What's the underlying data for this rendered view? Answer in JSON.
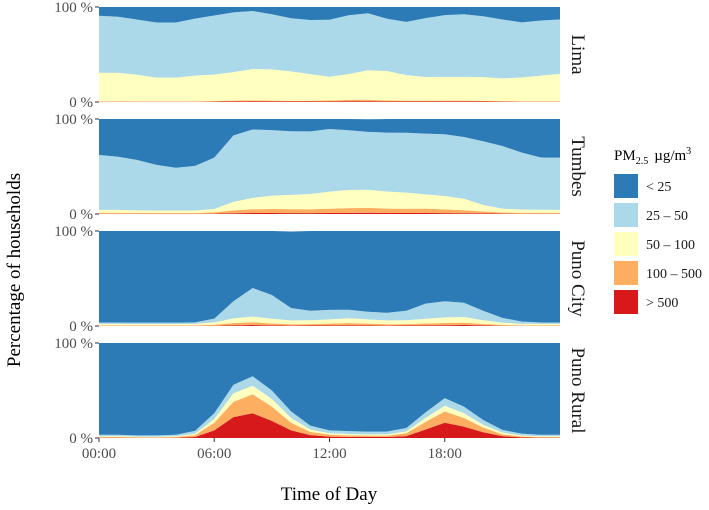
{
  "chart_data": {
    "type": "area",
    "stacked": true,
    "xlabel": "Time of Day",
    "ylabel": "Percentage of households",
    "x_ticks": [
      "00:00",
      "06:00",
      "12:00",
      "18:00"
    ],
    "x_tick_hours": [
      0,
      6,
      12,
      18
    ],
    "x_range_hours": [
      0,
      24
    ],
    "y_ticks": [
      "0 %",
      "100 %"
    ],
    "ylim": [
      0,
      100
    ],
    "legend": {
      "title_main": "PM",
      "title_sub": "2.5",
      "title_unit": "µg/m",
      "title_sup": "3",
      "placement": "right",
      "entries": [
        {
          "label": "< 25",
          "color": "#2c7bb6"
        },
        {
          "label": "25 – 50",
          "color": "#abd9e9"
        },
        {
          "label": "50 – 100",
          "color": "#ffffbf"
        },
        {
          "label": "100 – 500",
          "color": "#fdae61"
        },
        {
          "label": "> 500",
          "color": "#d7191c"
        }
      ]
    },
    "x_hours": [
      0,
      1,
      2,
      3,
      4,
      5,
      6,
      7,
      8,
      9,
      10,
      11,
      12,
      13,
      14,
      15,
      16,
      17,
      18,
      19,
      20,
      21,
      22,
      23,
      24
    ],
    "panels": [
      {
        "name": "Lima",
        "series": [
          {
            "name": "> 500",
            "values": [
              0.3,
              0.3,
              0.3,
              0.3,
              0.3,
              0.3,
              0.4,
              0.6,
              0.8,
              0.6,
              0.5,
              0.5,
              0.6,
              0.8,
              0.8,
              0.6,
              0.5,
              0.5,
              0.6,
              0.6,
              0.5,
              0.4,
              0.3,
              0.3,
              0.3
            ]
          },
          {
            "name": "100 – 500",
            "values": [
              0.5,
              0.5,
              0.4,
              0.4,
              0.4,
              0.4,
              0.6,
              0.8,
              1,
              0.8,
              0.7,
              0.8,
              1,
              1.5,
              1.6,
              1,
              0.8,
              0.8,
              0.9,
              0.8,
              0.7,
              0.5,
              0.5,
              0.5,
              0.5
            ]
          },
          {
            "name": "50 – 100",
            "values": [
              30,
              30,
              28,
              25,
              25,
              27,
              28,
              30,
              33,
              33,
              31,
              28,
              25,
              27,
              31,
              31,
              27,
              25,
              25,
              25,
              25,
              24,
              25,
              27,
              29
            ]
          },
          {
            "name": "25 – 50",
            "values": [
              60,
              59,
              58,
              58,
              58,
              60,
              62,
              63,
              61,
              58,
              56,
              57,
              60,
              62,
              60,
              55,
              56,
              62,
              65,
              66,
              64,
              62,
              58,
              58,
              57
            ]
          },
          {
            "name": "< 25",
            "values": [
              9.2,
              10.2,
              13.3,
              16.3,
              16.3,
              12.3,
              9,
              5.6,
              4.2,
              7.6,
              11.8,
              13.7,
              13.4,
              8.7,
              6.6,
              12.4,
              15.7,
              11.7,
              8.5,
              7.6,
              9.8,
              13.1,
              16.2,
              14.2,
              13.2
            ]
          }
        ]
      },
      {
        "name": "Tumbes",
        "series": [
          {
            "name": "> 500",
            "values": [
              0.3,
              0.3,
              0.3,
              0.3,
              0.3,
              0.3,
              0.4,
              0.8,
              1,
              1,
              0.9,
              0.9,
              1,
              1.2,
              1.3,
              1.1,
              1,
              1,
              0.9,
              0.8,
              0.6,
              0.4,
              0.3,
              0.3,
              0.3
            ]
          },
          {
            "name": "100 – 500",
            "values": [
              1,
              1,
              0.8,
              0.8,
              0.8,
              0.8,
              1.3,
              3,
              4,
              4.3,
              4.2,
              4.1,
              4.5,
              5,
              5.2,
              4.6,
              4.5,
              4.6,
              4,
              3.2,
              2,
              1.2,
              1,
              1,
              1
            ]
          },
          {
            "name": "50 – 100",
            "values": [
              3,
              3,
              2.7,
              2.6,
              2.6,
              2.6,
              3.6,
              9,
              12,
              14,
              15,
              16,
              18,
              19,
              19,
              18,
              17,
              15,
              14,
              12,
              7,
              4,
              3.5,
              3.2,
              3
            ]
          },
          {
            "name": "25 – 50",
            "values": [
              58,
              56,
              53,
              48,
              45,
              47,
              54,
              70,
              72,
              69,
              67,
              66,
              66,
              63,
              61,
              62,
              63,
              64,
              65,
              65,
              67,
              66,
              60,
              55,
              55
            ]
          },
          {
            "name": "< 25",
            "values": [
              37.7,
              39.7,
              43.2,
              48.3,
              51.3,
              49.3,
              40.7,
              17.2,
              11,
              11.7,
              12.9,
              13,
              10.5,
              11.8,
              13.2,
              14.3,
              14.5,
              15.4,
              16.1,
              19,
              23.4,
              28.4,
              35.2,
              40.5,
              40.7
            ]
          }
        ]
      },
      {
        "name": "Puno City",
        "series": [
          {
            "name": "> 500",
            "values": [
              0.2,
              0.2,
              0.2,
              0.2,
              0.2,
              0.2,
              0.3,
              0.7,
              1,
              0.6,
              0.4,
              0.5,
              0.5,
              0.6,
              0.5,
              0.4,
              0.5,
              0.6,
              0.8,
              1,
              0.6,
              0.3,
              0.2,
              0.2,
              0.2
            ]
          },
          {
            "name": "100 – 500",
            "values": [
              0.5,
              0.5,
              0.5,
              0.5,
              0.5,
              0.5,
              1,
              2.3,
              3,
              2,
              1.5,
              1.5,
              2,
              2.5,
              2,
              1.5,
              1.5,
              2,
              2.3,
              2.5,
              1.5,
              0.8,
              0.5,
              0.5,
              0.5
            ]
          },
          {
            "name": "50 – 100",
            "values": [
              1.5,
              1.5,
              1.4,
              1.4,
              1.4,
              1.5,
              2.5,
              5,
              6,
              5,
              4,
              4,
              4.5,
              5,
              4.5,
              4,
              4,
              5,
              6,
              6,
              4,
              2.5,
              1.5,
              1.5,
              1.5
            ]
          },
          {
            "name": "25 – 50",
            "values": [
              1.5,
              1.5,
              1.4,
              1.4,
              1.4,
              1.6,
              4,
              18,
              30,
              25,
              13,
              10,
              10,
              9,
              8,
              8,
              10,
              16,
              17,
              15,
              10,
              5,
              2.5,
              1.5,
              1.5
            ]
          },
          {
            "name": "< 25",
            "values": [
              96.3,
              96.3,
              96.5,
              96.5,
              96.5,
              96.2,
              92.2,
              74,
              60,
              67.4,
              80.6,
              84,
              83,
              82.9,
              85,
              86.1,
              84,
              76.4,
              73.9,
              75.5,
              83.9,
              91.4,
              95.3,
              96.3,
              96.3
            ]
          }
        ]
      },
      {
        "name": "Puno Rural",
        "series": [
          {
            "name": "> 500",
            "values": [
              0.3,
              0.3,
              0.2,
              0.2,
              0.3,
              1,
              8,
              22,
              26,
              18,
              8,
              3,
              1.5,
              1.2,
              1,
              1,
              2,
              9,
              16,
              12,
              6,
              2,
              0.6,
              0.3,
              0.3
            ]
          },
          {
            "name": "100 – 500",
            "values": [
              0.8,
              0.8,
              0.6,
              0.6,
              0.8,
              2,
              8,
              16,
              20,
              15,
              8,
              3.5,
              2,
              1.6,
              1.5,
              1.5,
              3,
              8,
              12,
              9,
              5,
              2,
              1,
              0.8,
              0.8
            ]
          },
          {
            "name": "50 – 100",
            "values": [
              0.8,
              0.8,
              0.6,
              0.6,
              0.8,
              1.5,
              4,
              9,
              9,
              8,
              5,
              2.5,
              1.5,
              1.4,
              1.2,
              1.3,
              2,
              4,
              6,
              5,
              3,
              1.6,
              1,
              0.8,
              0.8
            ]
          },
          {
            "name": "25 – 50",
            "values": [
              1.5,
              1.5,
              1.3,
              1.3,
              1.5,
              3,
              6,
              9,
              10,
              9,
              7,
              4,
              3,
              3,
              3,
              3,
              3.5,
              6,
              8,
              7,
              5,
              3,
              2,
              1.5,
              1.5
            ]
          },
          {
            "name": "< 25",
            "values": [
              96.6,
              96.6,
              97.3,
              97.3,
              96.6,
              92.5,
              74,
              44,
              35,
              50,
              72,
              87,
              92,
              92.8,
              93.3,
              93.2,
              89.5,
              73,
              58,
              67,
              81,
              91.4,
              95.4,
              96.6,
              96.6
            ]
          }
        ]
      }
    ]
  }
}
